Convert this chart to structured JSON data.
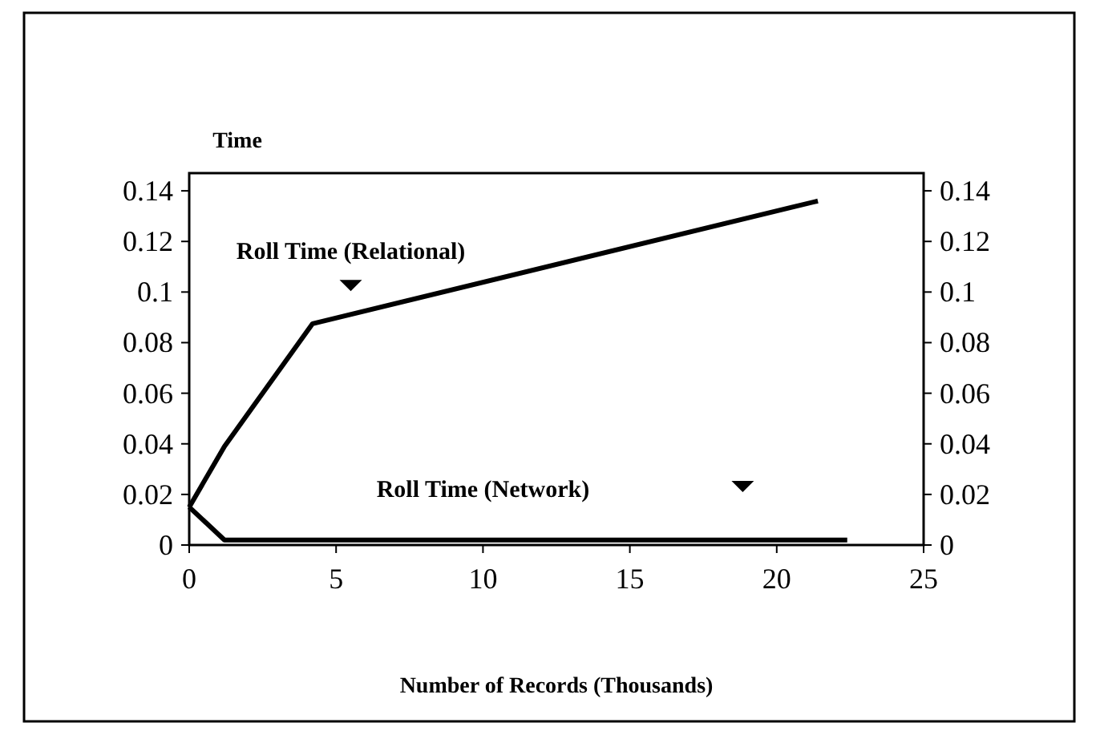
{
  "chart_data": {
    "type": "line",
    "ylabel": "Time",
    "xlabel": "Number of Records (Thousands)",
    "xlim": [
      0,
      25
    ],
    "xticks": [
      0,
      5,
      10,
      15,
      20,
      25
    ],
    "ylim": [
      0,
      0.147
    ],
    "yticks": [
      0,
      0.02,
      0.04,
      0.06,
      0.08,
      0.1,
      0.12,
      0.14
    ],
    "y2lim": [
      0,
      0.147
    ],
    "y2ticks": [
      0,
      0.02,
      0.04,
      0.06,
      0.08,
      0.1,
      0.12,
      0.14
    ],
    "grid": false,
    "marker": "none",
    "line_style": "solid",
    "series": [
      {
        "name": "Roll Time (Relational)",
        "color": "#000000",
        "x": [
          0,
          1.2,
          4.2,
          21.4
        ],
        "values": [
          0.015,
          0.039,
          0.0875,
          0.136
        ]
      },
      {
        "name": "Roll Time (Network)",
        "color": "#000000",
        "x": [
          0,
          1.2,
          22.4
        ],
        "values": [
          0.015,
          0.002,
          0.002
        ]
      }
    ]
  }
}
